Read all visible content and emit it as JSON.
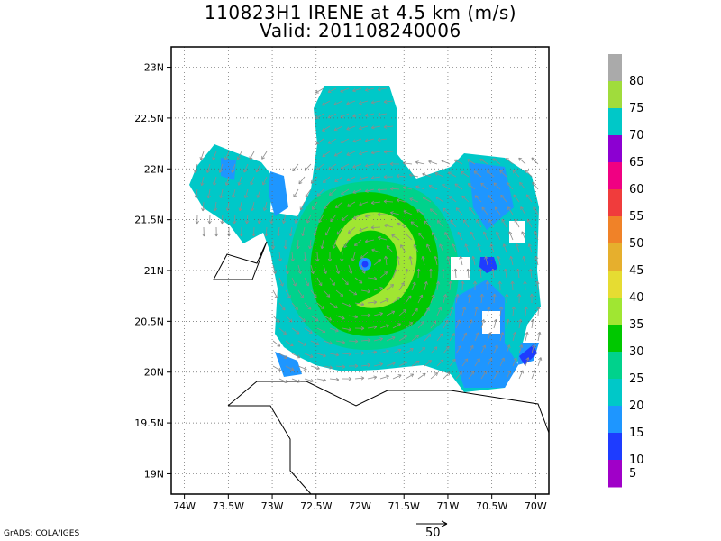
{
  "title": {
    "line1": "110823H1 IRENE at 4.5 km (m/s)",
    "line2": "Valid: 201108240006"
  },
  "map": {
    "lat_ticks": [
      "23N",
      "22.5N",
      "22N",
      "21.5N",
      "21N",
      "20.5N",
      "20N",
      "19.5N",
      "19N"
    ],
    "lon_ticks": [
      "74W",
      "73.5W",
      "73W",
      "72.5W",
      "72W",
      "71.5W",
      "71W",
      "70.5W",
      "70W"
    ],
    "lat_values": [
      23,
      22.5,
      22,
      21.5,
      21,
      20.5,
      20,
      19.5,
      19
    ],
    "lon_values": [
      -74,
      -73.5,
      -73,
      -72.5,
      -72,
      -71.5,
      -71,
      -70.5,
      -70
    ],
    "lat_range": [
      18.8,
      23.2
    ],
    "lon_range": [
      -74.15,
      -69.85
    ],
    "grid": "dotted",
    "storm_center": {
      "lon": -71.85,
      "lat": 21.07
    }
  },
  "colorbar": {
    "labels": [
      "80",
      "75",
      "70",
      "65",
      "60",
      "55",
      "50",
      "45",
      "40",
      "35",
      "30",
      "25",
      "20",
      "15",
      "10",
      "5"
    ],
    "colors": [
      "#aaaaaa",
      "#a0dc3c",
      "#00c8c8",
      "#8c00d2",
      "#f00082",
      "#f03c3c",
      "#f08228",
      "#e6af2d",
      "#e6dc32",
      "#a0e632",
      "#00c800",
      "#00d28c",
      "#00c8c8",
      "#1e96ff",
      "#1e3cff",
      "#a000c8"
    ]
  },
  "credit": "GrADS: COLA/IGES",
  "reference_vector": {
    "label": "50"
  },
  "colors": {
    "land_outline": "#000000",
    "vector": "#888888"
  }
}
